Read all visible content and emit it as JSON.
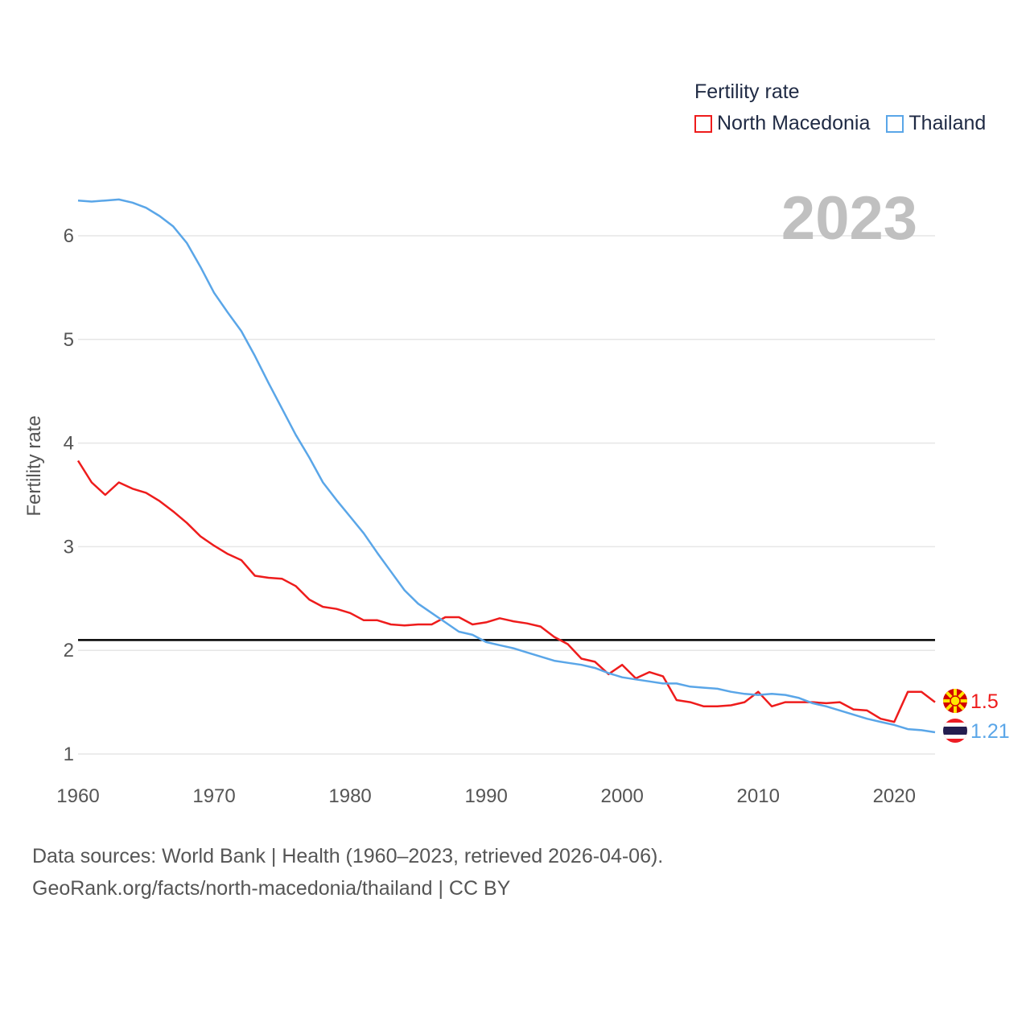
{
  "legend": {
    "title": "Fertility rate",
    "items": [
      {
        "label": "North Macedonia",
        "color": "#ee1c1c"
      },
      {
        "label": "Thailand",
        "color": "#5aa6e8"
      }
    ]
  },
  "year_display": "2023",
  "source": {
    "line1": "Data sources: World Bank | Health (1960–2023, retrieved 2026-04-06).",
    "line2": "GeoRank.org/facts/north-macedonia/thailand | CC BY"
  },
  "chart_data": {
    "type": "line",
    "title": "Fertility rate",
    "xlabel": "",
    "ylabel": "Fertility rate",
    "xlim": [
      1960,
      2023
    ],
    "ylim": [
      0.75,
      6.4
    ],
    "yticks": [
      1,
      2,
      3,
      4,
      5,
      6
    ],
    "xticks": [
      1960,
      1970,
      1980,
      1990,
      2000,
      2010,
      2020
    ],
    "grid": true,
    "reference_line": {
      "y": 2.1,
      "color": "#000000"
    },
    "x": [
      1960,
      1961,
      1962,
      1963,
      1964,
      1965,
      1966,
      1967,
      1968,
      1969,
      1970,
      1971,
      1972,
      1973,
      1974,
      1975,
      1976,
      1977,
      1978,
      1979,
      1980,
      1981,
      1982,
      1983,
      1984,
      1985,
      1986,
      1987,
      1988,
      1989,
      1990,
      1991,
      1992,
      1993,
      1994,
      1995,
      1996,
      1997,
      1998,
      1999,
      2000,
      2001,
      2002,
      2003,
      2004,
      2005,
      2006,
      2007,
      2008,
      2009,
      2010,
      2011,
      2012,
      2013,
      2014,
      2015,
      2016,
      2017,
      2018,
      2019,
      2020,
      2021,
      2022,
      2023
    ],
    "series": [
      {
        "name": "North Macedonia",
        "color": "#ee1c1c",
        "end_label": "1.5",
        "values": [
          3.83,
          3.62,
          3.5,
          3.62,
          3.56,
          3.52,
          3.44,
          3.34,
          3.23,
          3.1,
          3.01,
          2.93,
          2.87,
          2.72,
          2.7,
          2.69,
          2.62,
          2.49,
          2.42,
          2.4,
          2.36,
          2.29,
          2.29,
          2.25,
          2.24,
          2.25,
          2.25,
          2.32,
          2.32,
          2.25,
          2.27,
          2.31,
          2.28,
          2.26,
          2.23,
          2.13,
          2.06,
          1.92,
          1.89,
          1.77,
          1.86,
          1.73,
          1.79,
          1.75,
          1.52,
          1.5,
          1.46,
          1.46,
          1.47,
          1.5,
          1.6,
          1.46,
          1.5,
          1.5,
          1.5,
          1.49,
          1.5,
          1.43,
          1.42,
          1.34,
          1.31,
          1.6,
          1.6,
          1.5
        ]
      },
      {
        "name": "Thailand",
        "color": "#5aa6e8",
        "end_label": "1.21",
        "values": [
          6.34,
          6.33,
          6.34,
          6.35,
          6.32,
          6.27,
          6.19,
          6.09,
          5.93,
          5.7,
          5.45,
          5.26,
          5.08,
          4.84,
          4.58,
          4.33,
          4.08,
          3.86,
          3.62,
          3.45,
          3.29,
          3.13,
          2.94,
          2.76,
          2.58,
          2.45,
          2.36,
          2.27,
          2.18,
          2.15,
          2.08,
          2.05,
          2.02,
          1.98,
          1.94,
          1.9,
          1.88,
          1.86,
          1.83,
          1.78,
          1.74,
          1.72,
          1.7,
          1.68,
          1.68,
          1.65,
          1.64,
          1.63,
          1.6,
          1.58,
          1.57,
          1.58,
          1.57,
          1.54,
          1.49,
          1.46,
          1.42,
          1.38,
          1.34,
          1.31,
          1.28,
          1.24,
          1.23,
          1.21
        ]
      }
    ]
  }
}
